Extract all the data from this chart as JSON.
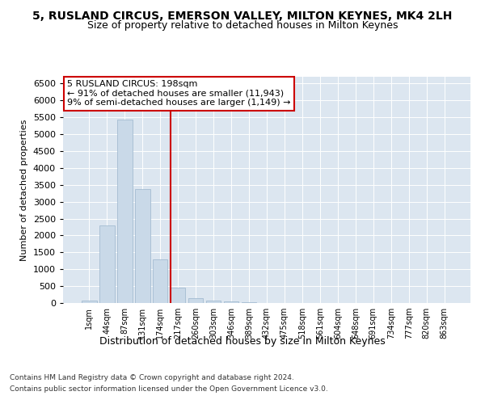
{
  "title": "5, RUSLAND CIRCUS, EMERSON VALLEY, MILTON KEYNES, MK4 2LH",
  "subtitle": "Size of property relative to detached houses in Milton Keynes",
  "xlabel": "Distribution of detached houses by size in Milton Keynes",
  "ylabel": "Number of detached properties",
  "footer1": "Contains HM Land Registry data © Crown copyright and database right 2024.",
  "footer2": "Contains public sector information licensed under the Open Government Licence v3.0.",
  "bar_labels": [
    "1sqm",
    "44sqm",
    "87sqm",
    "131sqm",
    "174sqm",
    "217sqm",
    "260sqm",
    "303sqm",
    "346sqm",
    "389sqm",
    "432sqm",
    "475sqm",
    "518sqm",
    "561sqm",
    "604sqm",
    "648sqm",
    "691sqm",
    "734sqm",
    "777sqm",
    "820sqm",
    "863sqm"
  ],
  "bar_values": [
    70,
    2290,
    5420,
    3380,
    1300,
    465,
    155,
    80,
    50,
    25,
    10,
    5,
    3,
    2,
    1,
    1,
    0,
    0,
    0,
    0,
    0
  ],
  "bar_color": "#c9d9e8",
  "bar_edgecolor": "#9ab5cc",
  "vline_x_idx": 4.6,
  "vline_color": "#cc0000",
  "annotation_text": "5 RUSLAND CIRCUS: 198sqm\n← 91% of detached houses are smaller (11,943)\n9% of semi-detached houses are larger (1,149) →",
  "ylim": [
    0,
    6700
  ],
  "yticks": [
    0,
    500,
    1000,
    1500,
    2000,
    2500,
    3000,
    3500,
    4000,
    4500,
    5000,
    5500,
    6000,
    6500
  ],
  "bg_color": "#dce6f0",
  "title_fontsize": 10,
  "subtitle_fontsize": 9,
  "xlabel_fontsize": 9,
  "ylabel_fontsize": 8,
  "footer_fontsize": 6.5
}
